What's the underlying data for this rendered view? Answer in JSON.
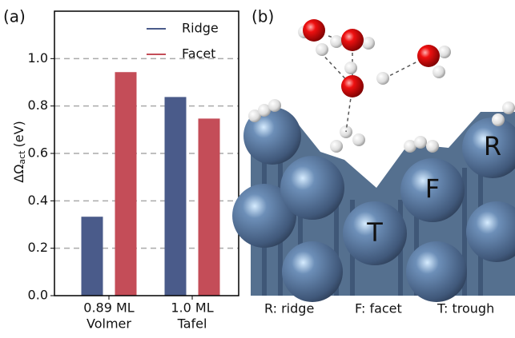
{
  "chart_data": {
    "type": "bar",
    "panel_label": "(a)",
    "ylabel": "ΔΩ",
    "ylabel_sub": "act",
    "ylabel_unit": "(eV)",
    "categories": [
      [
        "0.89 ML",
        "Volmer"
      ],
      [
        "1.0 ML",
        "Tafel"
      ]
    ],
    "series": [
      {
        "name": "Ridge",
        "color": "#4a5b8a",
        "values": [
          0.333,
          0.838
        ]
      },
      {
        "name": "Facet",
        "color": "#c44d58",
        "values": [
          0.943,
          0.747
        ]
      }
    ],
    "ylim": [
      0,
      1.2
    ],
    "yticks": [
      {
        "value": 0,
        "label": "0.0"
      },
      0.2,
      0.4,
      0.6,
      0.8,
      {
        "value": 1,
        "label": "1.0"
      }
    ],
    "grid": true,
    "legend": "upper right"
  },
  "panel_b": {
    "panel_label": "(b)",
    "sites": [
      "R",
      "F",
      "T"
    ],
    "captions": [
      "R: ridge",
      "F: facet",
      "T: trough"
    ]
  }
}
